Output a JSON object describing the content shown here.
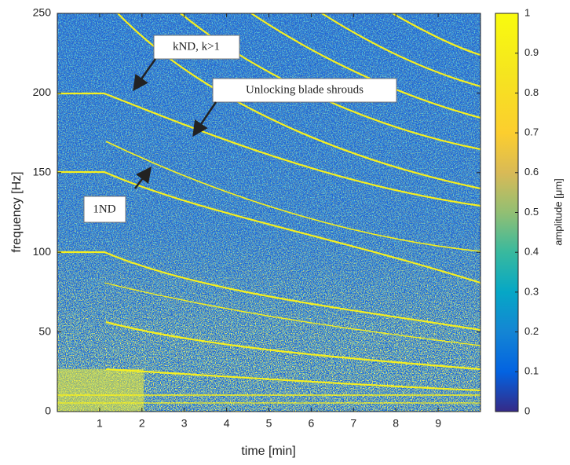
{
  "chart_data": {
    "type": "heatmap",
    "xlabel": "time [min]",
    "ylabel": "frequency [Hz]",
    "xlim": [
      0,
      10
    ],
    "xticks": [
      1,
      2,
      3,
      4,
      5,
      6,
      7,
      8,
      9
    ],
    "ylim": [
      0,
      250
    ],
    "yticks": [
      0,
      50,
      100,
      150,
      200,
      250
    ],
    "colorbar": {
      "label": "amplitude [μm]",
      "lim": [
        0,
        1
      ],
      "ticks": [
        0,
        0.1,
        0.2,
        0.3,
        0.4,
        0.5,
        0.6,
        0.7,
        0.8,
        0.9,
        1
      ]
    },
    "annotations": [
      "kND, k>1",
      "Unlocking blade shrouds",
      "1ND"
    ]
  }
}
